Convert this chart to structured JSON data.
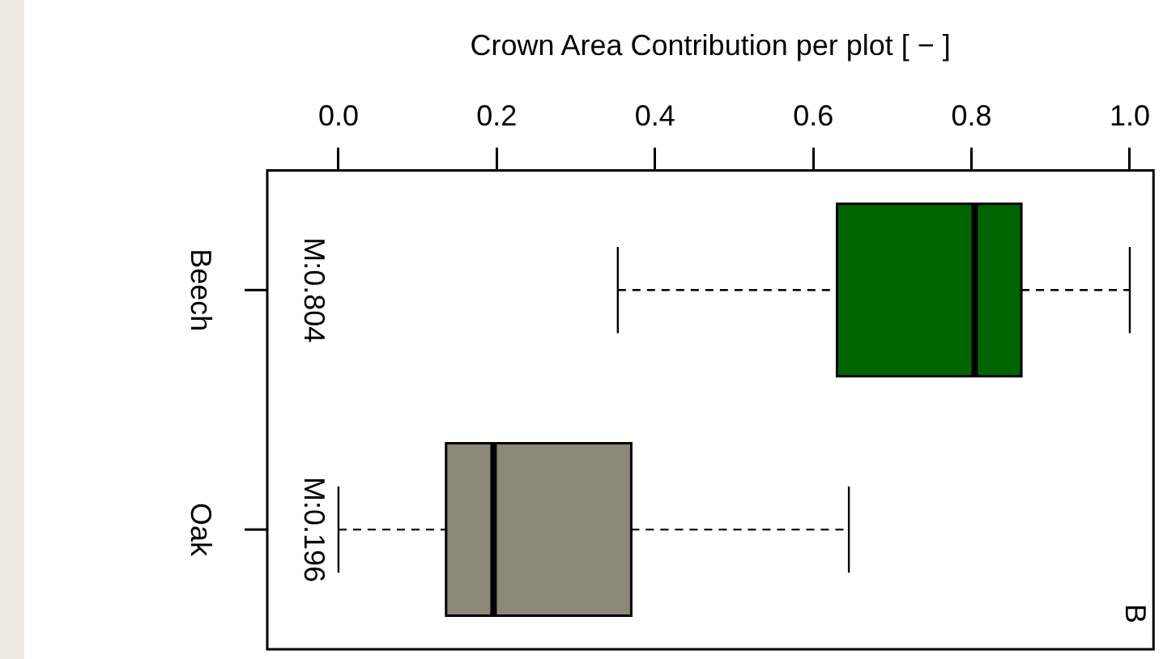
{
  "chart_data": {
    "type": "box",
    "orientation": "horizontal",
    "xlabel": "Crown Area Contribution per plot [ − ]",
    "categories": [
      "Beech",
      "Oak"
    ],
    "colors": [
      "#006400",
      "#8b8878"
    ],
    "boxes": [
      {
        "low": 0.353,
        "q1": 0.63,
        "median": 0.804,
        "q3": 0.863,
        "high": 1.0
      },
      {
        "low": 0.0,
        "q1": 0.136,
        "median": 0.196,
        "q3": 0.37,
        "high": 0.645
      }
    ],
    "xlim": [
      -0.09,
      1.03
    ],
    "xticks": [
      {
        "value": 0,
        "label": "0.0"
      },
      {
        "value": 0.2,
        "label": "0.2"
      },
      {
        "value": 0.4,
        "label": "0.4"
      },
      {
        "value": 0.6,
        "label": "0.6"
      },
      {
        "value": 0.8,
        "label": "0.8"
      },
      {
        "value": 1,
        "label": "1.0"
      }
    ],
    "grid": false,
    "legend": false,
    "annotations": [
      "M:0.804",
      "M:0.196",
      "B"
    ]
  }
}
